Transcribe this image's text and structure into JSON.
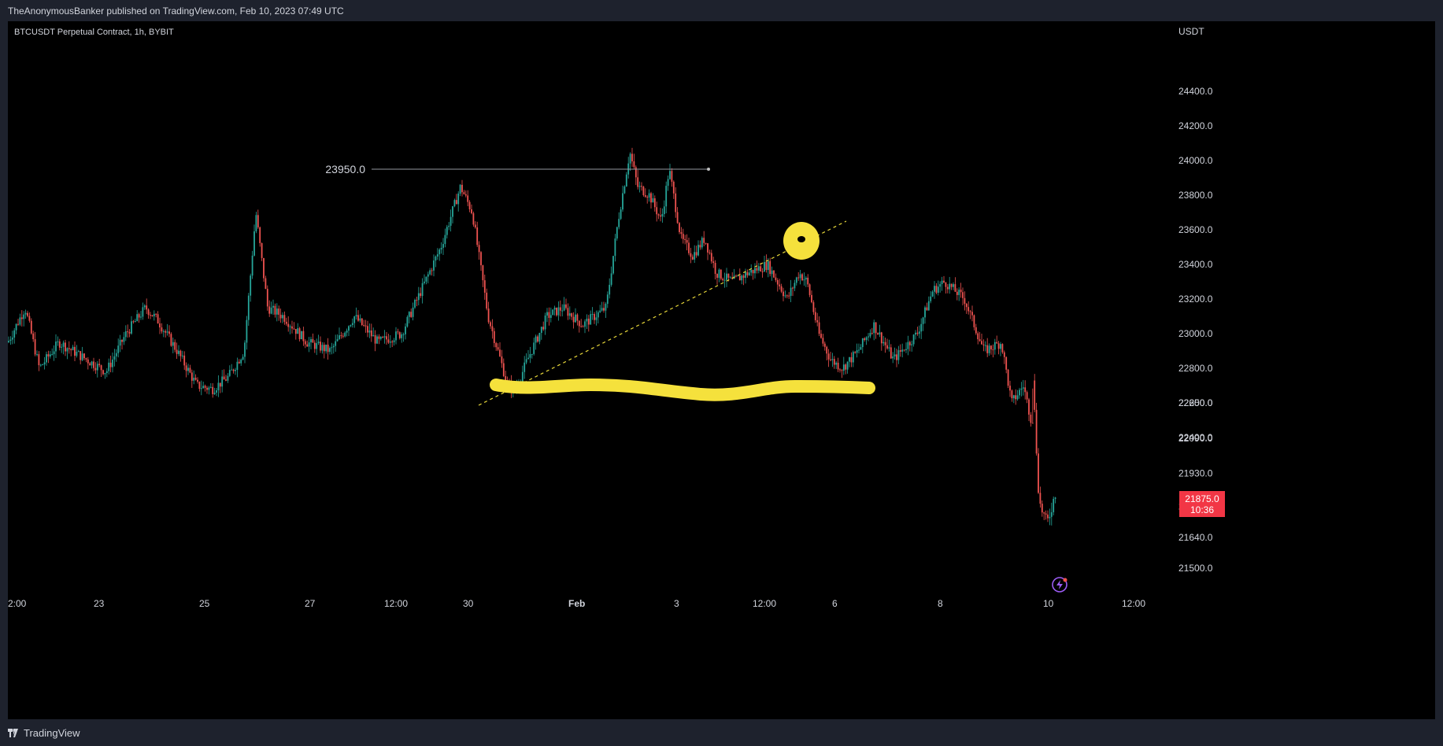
{
  "header": {
    "publish_line": "TheAnonymousBanker published on TradingView.com, Feb 10, 2023 07:49 UTC"
  },
  "chart": {
    "symbol_line": "BTCUSDT Perpetual Contract, 1h, BYBIT",
    "currency": "USDT",
    "up_color": "#26a69a",
    "down_color": "#ef5350",
    "y_axis_labels": [
      "24400.0",
      "24200.0",
      "24000.0",
      "23800.0",
      "23600.0",
      "23400.0",
      "23200.0",
      "23000.0",
      "22800.0",
      "22600.0",
      "22400.0",
      "22250.0",
      "22090.0",
      "21930.0",
      "21780.0",
      "21640.0",
      "21500.0"
    ],
    "x_axis_labels": [
      "2:00",
      "23",
      "25",
      "27",
      "12:00",
      "30",
      "Feb",
      "3",
      "12:00",
      "6",
      "8",
      "10",
      "12:00"
    ],
    "last_price": "21875.0",
    "countdown": "10:36",
    "horizontal_level_label": "23950.0"
  },
  "footer": {
    "brand": "TradingView"
  },
  "chart_data": {
    "type": "candlestick",
    "title": "BTCUSDT Perpetual Contract, 1h, BYBIT",
    "y_unit": "USDT",
    "ylim": [
      21450,
      24500
    ],
    "x_ticks": [
      "2:00",
      "23",
      "25",
      "27",
      "12:00",
      "30",
      "Feb",
      "3",
      "12:00",
      "6",
      "8",
      "10",
      "12:00"
    ],
    "path_x": [
      0,
      22,
      40,
      65,
      100,
      125,
      150,
      175,
      190,
      215,
      240,
      260,
      280,
      300,
      315,
      330,
      350,
      380,
      410,
      440,
      470,
      500,
      520,
      550,
      575,
      590,
      610,
      635,
      645,
      660,
      685,
      705,
      730,
      760,
      775,
      790,
      800,
      815,
      830,
      840,
      855,
      870,
      885,
      900,
      920,
      940,
      965,
      990,
      1005,
      1015,
      1030,
      1045,
      1060,
      1080,
      1100,
      1125,
      1155,
      1175,
      1190,
      1215,
      1240,
      1262,
      1275,
      1290,
      1300,
      1310,
      1320,
      1333
    ],
    "path_price": [
      22950,
      23150,
      22800,
      22950,
      22850,
      22780,
      23000,
      23150,
      23080,
      22900,
      22700,
      22680,
      22750,
      22900,
      23700,
      23150,
      23100,
      22950,
      22900,
      23100,
      22950,
      23000,
      23200,
      23500,
      23850,
      23700,
      23100,
      22700,
      22680,
      22850,
      23100,
      23150,
      23050,
      23150,
      23650,
      24050,
      23850,
      23800,
      23650,
      23950,
      23550,
      23450,
      23550,
      23350,
      23300,
      23350,
      23400,
      23200,
      23350,
      23300,
      23000,
      22850,
      22800,
      22900,
      23050,
      22850,
      23000,
      23250,
      23300,
      23200,
      22900,
      22950,
      22600,
      22700,
      22500,
      21800,
      21700,
      21875
    ],
    "annotations": [
      {
        "type": "horizontal_level",
        "price": 23950,
        "label": "23950.0"
      },
      {
        "type": "trendline",
        "style": "dashed",
        "color": "#e8d83a"
      },
      {
        "type": "highlight_stroke",
        "color": "#f5e13c"
      },
      {
        "type": "highlight_circle",
        "color": "#f5e13c"
      }
    ],
    "last_price": 21875
  }
}
